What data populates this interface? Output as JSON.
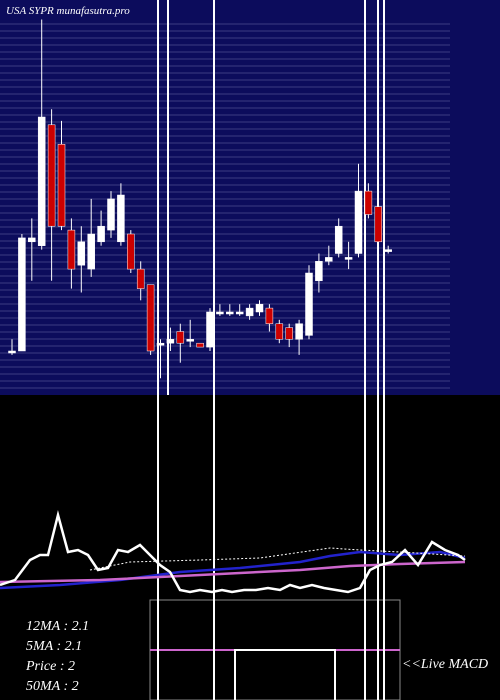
{
  "chart_data": [
    {
      "type": "candlestick",
      "title": "USA SYPR munafasutra.pro",
      "ylim": [
        1.6,
        2.6
      ],
      "up_color": "#ffffff",
      "down_color": "#cc0000",
      "open": [
        1.7,
        1.7,
        1.98,
        1.97,
        2.28,
        2.23,
        2.01,
        1.92,
        1.91,
        1.98,
        2.01,
        1.98,
        2.0,
        1.91,
        1.87,
        1.72,
        1.72,
        1.75,
        1.73,
        1.72,
        1.71,
        1.8,
        1.8,
        1.8,
        1.79,
        1.8,
        1.81,
        1.77,
        1.76,
        1.73,
        1.74,
        1.88,
        1.93,
        1.95,
        1.94,
        1.95,
        2.11,
        2.07,
        1.96
      ],
      "high": [
        1.73,
        2.0,
        2.04,
        2.55,
        2.32,
        2.29,
        2.04,
        2.02,
        2.09,
        2.06,
        2.11,
        2.13,
        2.01,
        1.93,
        1.87,
        1.73,
        1.76,
        1.77,
        1.78,
        1.72,
        1.81,
        1.82,
        1.82,
        1.82,
        1.82,
        1.83,
        1.82,
        1.78,
        1.77,
        1.78,
        1.92,
        1.95,
        1.97,
        2.04,
        1.98,
        2.18,
        2.13,
        2.11,
        1.97
      ],
      "low": [
        1.69,
        1.7,
        1.88,
        1.96,
        1.88,
        2.01,
        1.86,
        1.85,
        1.89,
        1.97,
        1.99,
        1.97,
        1.9,
        1.83,
        1.69,
        1.63,
        1.7,
        1.67,
        1.71,
        1.71,
        1.7,
        1.79,
        1.79,
        1.79,
        1.78,
        1.79,
        1.75,
        1.72,
        1.71,
        1.69,
        1.73,
        1.85,
        1.92,
        1.94,
        1.91,
        1.94,
        2.04,
        1.97,
        1.95
      ],
      "close": [
        1.7,
        1.99,
        1.99,
        2.3,
        2.02,
        2.02,
        1.91,
        1.98,
        2.0,
        2.02,
        2.09,
        2.1,
        1.91,
        1.86,
        1.7,
        1.72,
        1.73,
        1.72,
        1.73,
        1.71,
        1.8,
        1.8,
        1.8,
        1.8,
        1.81,
        1.82,
        1.77,
        1.73,
        1.73,
        1.77,
        1.9,
        1.93,
        1.94,
        2.02,
        1.94,
        2.11,
        2.05,
        1.98,
        1.96
      ]
    },
    {
      "type": "line",
      "xlim": [
        0,
        465
      ],
      "ylim": [
        0,
        10
      ],
      "labels": [
        "12MA : 2.1",
        "5MA : 2.1",
        "Price   : 2",
        "50MA : 2"
      ],
      "note": "<<Live MACD",
      "series": [
        {
          "color": "#2222cc",
          "x": [
            0,
            60,
            120,
            180,
            240,
            300,
            330,
            360,
            400,
            440,
            465
          ],
          "values": [
            1.2,
            1.5,
            2.0,
            2.8,
            3.2,
            3.8,
            4.4,
            4.8,
            4.5,
            4.8,
            4.2
          ]
        },
        {
          "color": "#cc66cc",
          "x": [
            0,
            100,
            200,
            300,
            350,
            400,
            465
          ],
          "values": [
            1.8,
            2.0,
            2.5,
            3.0,
            3.4,
            3.6,
            3.8
          ]
        },
        {
          "color": "#ffffff",
          "dash": true,
          "x": [
            90,
            130,
            200,
            260,
            330,
            360,
            400,
            465
          ],
          "values": [
            3.0,
            3.8,
            4.0,
            4.2,
            5.2,
            5.0,
            4.8,
            4.4
          ]
        },
        {
          "color": "#ffffff",
          "x": [
            0,
            15,
            30,
            40,
            48,
            58,
            68,
            78,
            88,
            98,
            108,
            118,
            128,
            140,
            150,
            160,
            170,
            180,
            190,
            200,
            212,
            222,
            232,
            244,
            256,
            268,
            280,
            290,
            300,
            312,
            324,
            336,
            348,
            360,
            370,
            380,
            392,
            405,
            418,
            432,
            445,
            458,
            465
          ],
          "values": [
            1.5,
            2.0,
            4.0,
            4.5,
            4.5,
            8.5,
            4.8,
            5.0,
            4.5,
            3.0,
            3.2,
            5.0,
            4.8,
            5.5,
            4.5,
            3.5,
            2.8,
            1.0,
            0.8,
            1.0,
            0.8,
            1.0,
            0.8,
            1.0,
            1.0,
            1.2,
            1.0,
            1.5,
            1.2,
            1.5,
            1.2,
            1.0,
            0.8,
            1.2,
            3.0,
            3.5,
            3.8,
            5.0,
            3.5,
            5.8,
            5.0,
            4.5,
            4.0
          ]
        }
      ]
    }
  ]
}
